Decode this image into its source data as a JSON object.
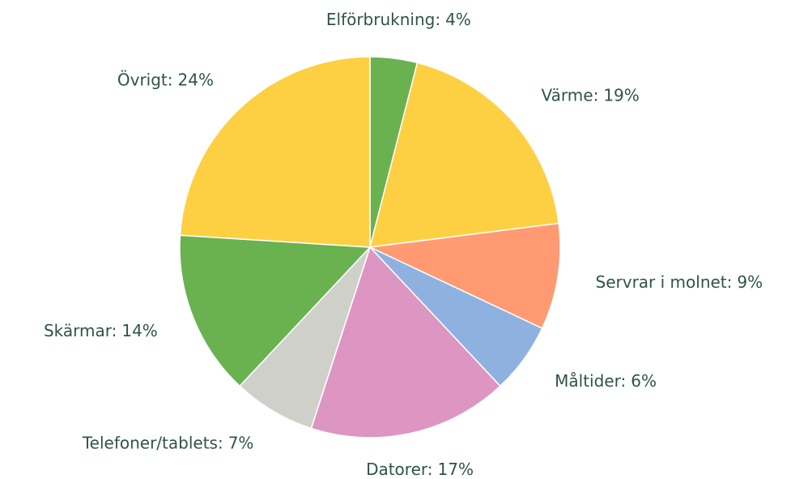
{
  "chart_data": {
    "type": "pie",
    "categories": [
      "Elförbrukning:",
      "Värme:",
      "Servrar i molnet:",
      "Måltider:",
      "Datorer:",
      "Telefoner/tablets:",
      "Skärmar:",
      "Övrigt:"
    ],
    "values": [
      4,
      19,
      9,
      6,
      17,
      7,
      14,
      24
    ],
    "value_labels": [
      "4%",
      "19%",
      "9%",
      "6%",
      "17%",
      "7%",
      "14%",
      "24%"
    ],
    "colors": [
      "#6ab150",
      "#fdd043",
      "#ff9a72",
      "#8eb1e0",
      "#dd95c2",
      "#d0d0cb",
      "#6ab150",
      "#fdd043"
    ]
  }
}
